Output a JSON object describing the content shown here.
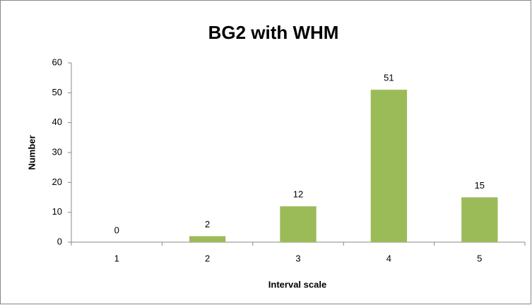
{
  "chart_data": {
    "type": "bar",
    "title": "BG2 with WHM",
    "x_label": "Interval scale",
    "y_label": "Number",
    "categories": [
      "1",
      "2",
      "3",
      "4",
      "5"
    ],
    "values": [
      0,
      2,
      12,
      51,
      15
    ],
    "color": "#9bbb59",
    "ylim": [
      0,
      60
    ],
    "yticks": [
      0,
      10,
      20,
      30,
      40,
      50,
      60
    ],
    "grid": false,
    "data_labels": true
  }
}
